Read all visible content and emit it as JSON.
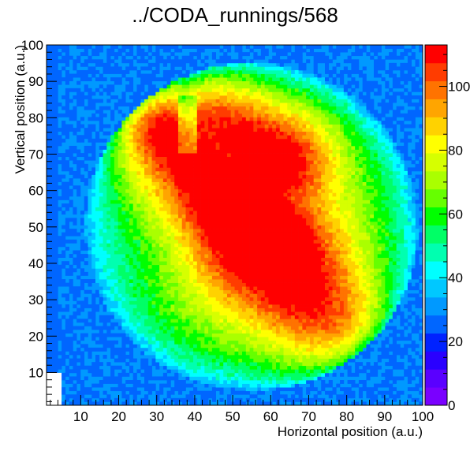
{
  "title": "../CODA_runnings/568",
  "chart_data": {
    "type": "heatmap",
    "title": "../CODA_runnings/568",
    "xlabel": "Horizontal position (a.u.)",
    "ylabel": "Vertical position (a.u.)",
    "xlim": [
      1,
      100
    ],
    "ylim": [
      1,
      100
    ],
    "x_ticks": [
      10,
      20,
      30,
      40,
      50,
      60,
      70,
      80,
      90,
      100
    ],
    "y_ticks": [
      10,
      20,
      30,
      40,
      50,
      60,
      70,
      80,
      90,
      100
    ],
    "bins": [
      100,
      100
    ],
    "z_range": [
      0,
      113
    ],
    "colorbar_ticks": [
      0,
      20,
      40,
      60,
      80,
      100
    ],
    "colorbar_levels": 20,
    "palette": [
      "#7a00ff",
      "#5a00ff",
      "#2a00ff",
      "#0022ff",
      "#0066ff",
      "#0099ff",
      "#00c8ff",
      "#00ffff",
      "#00ffb0",
      "#00ff66",
      "#00ff00",
      "#66ff00",
      "#aaff00",
      "#d6ff00",
      "#ffff00",
      "#ffd200",
      "#ffa500",
      "#ff7300",
      "#ff3c00",
      "#ff0000"
    ],
    "background_level_color": "#0099ff",
    "features": {
      "envelope_center": [
        55,
        50
      ],
      "envelope_radii": [
        44,
        45
      ],
      "hot_region": "large red region from upper-left (x 25-50, y 65-85) diagonally down to right (x 70-80, y 20-35)",
      "notch": "narrow cooler gap near x 37-40, y 70-85"
    }
  }
}
